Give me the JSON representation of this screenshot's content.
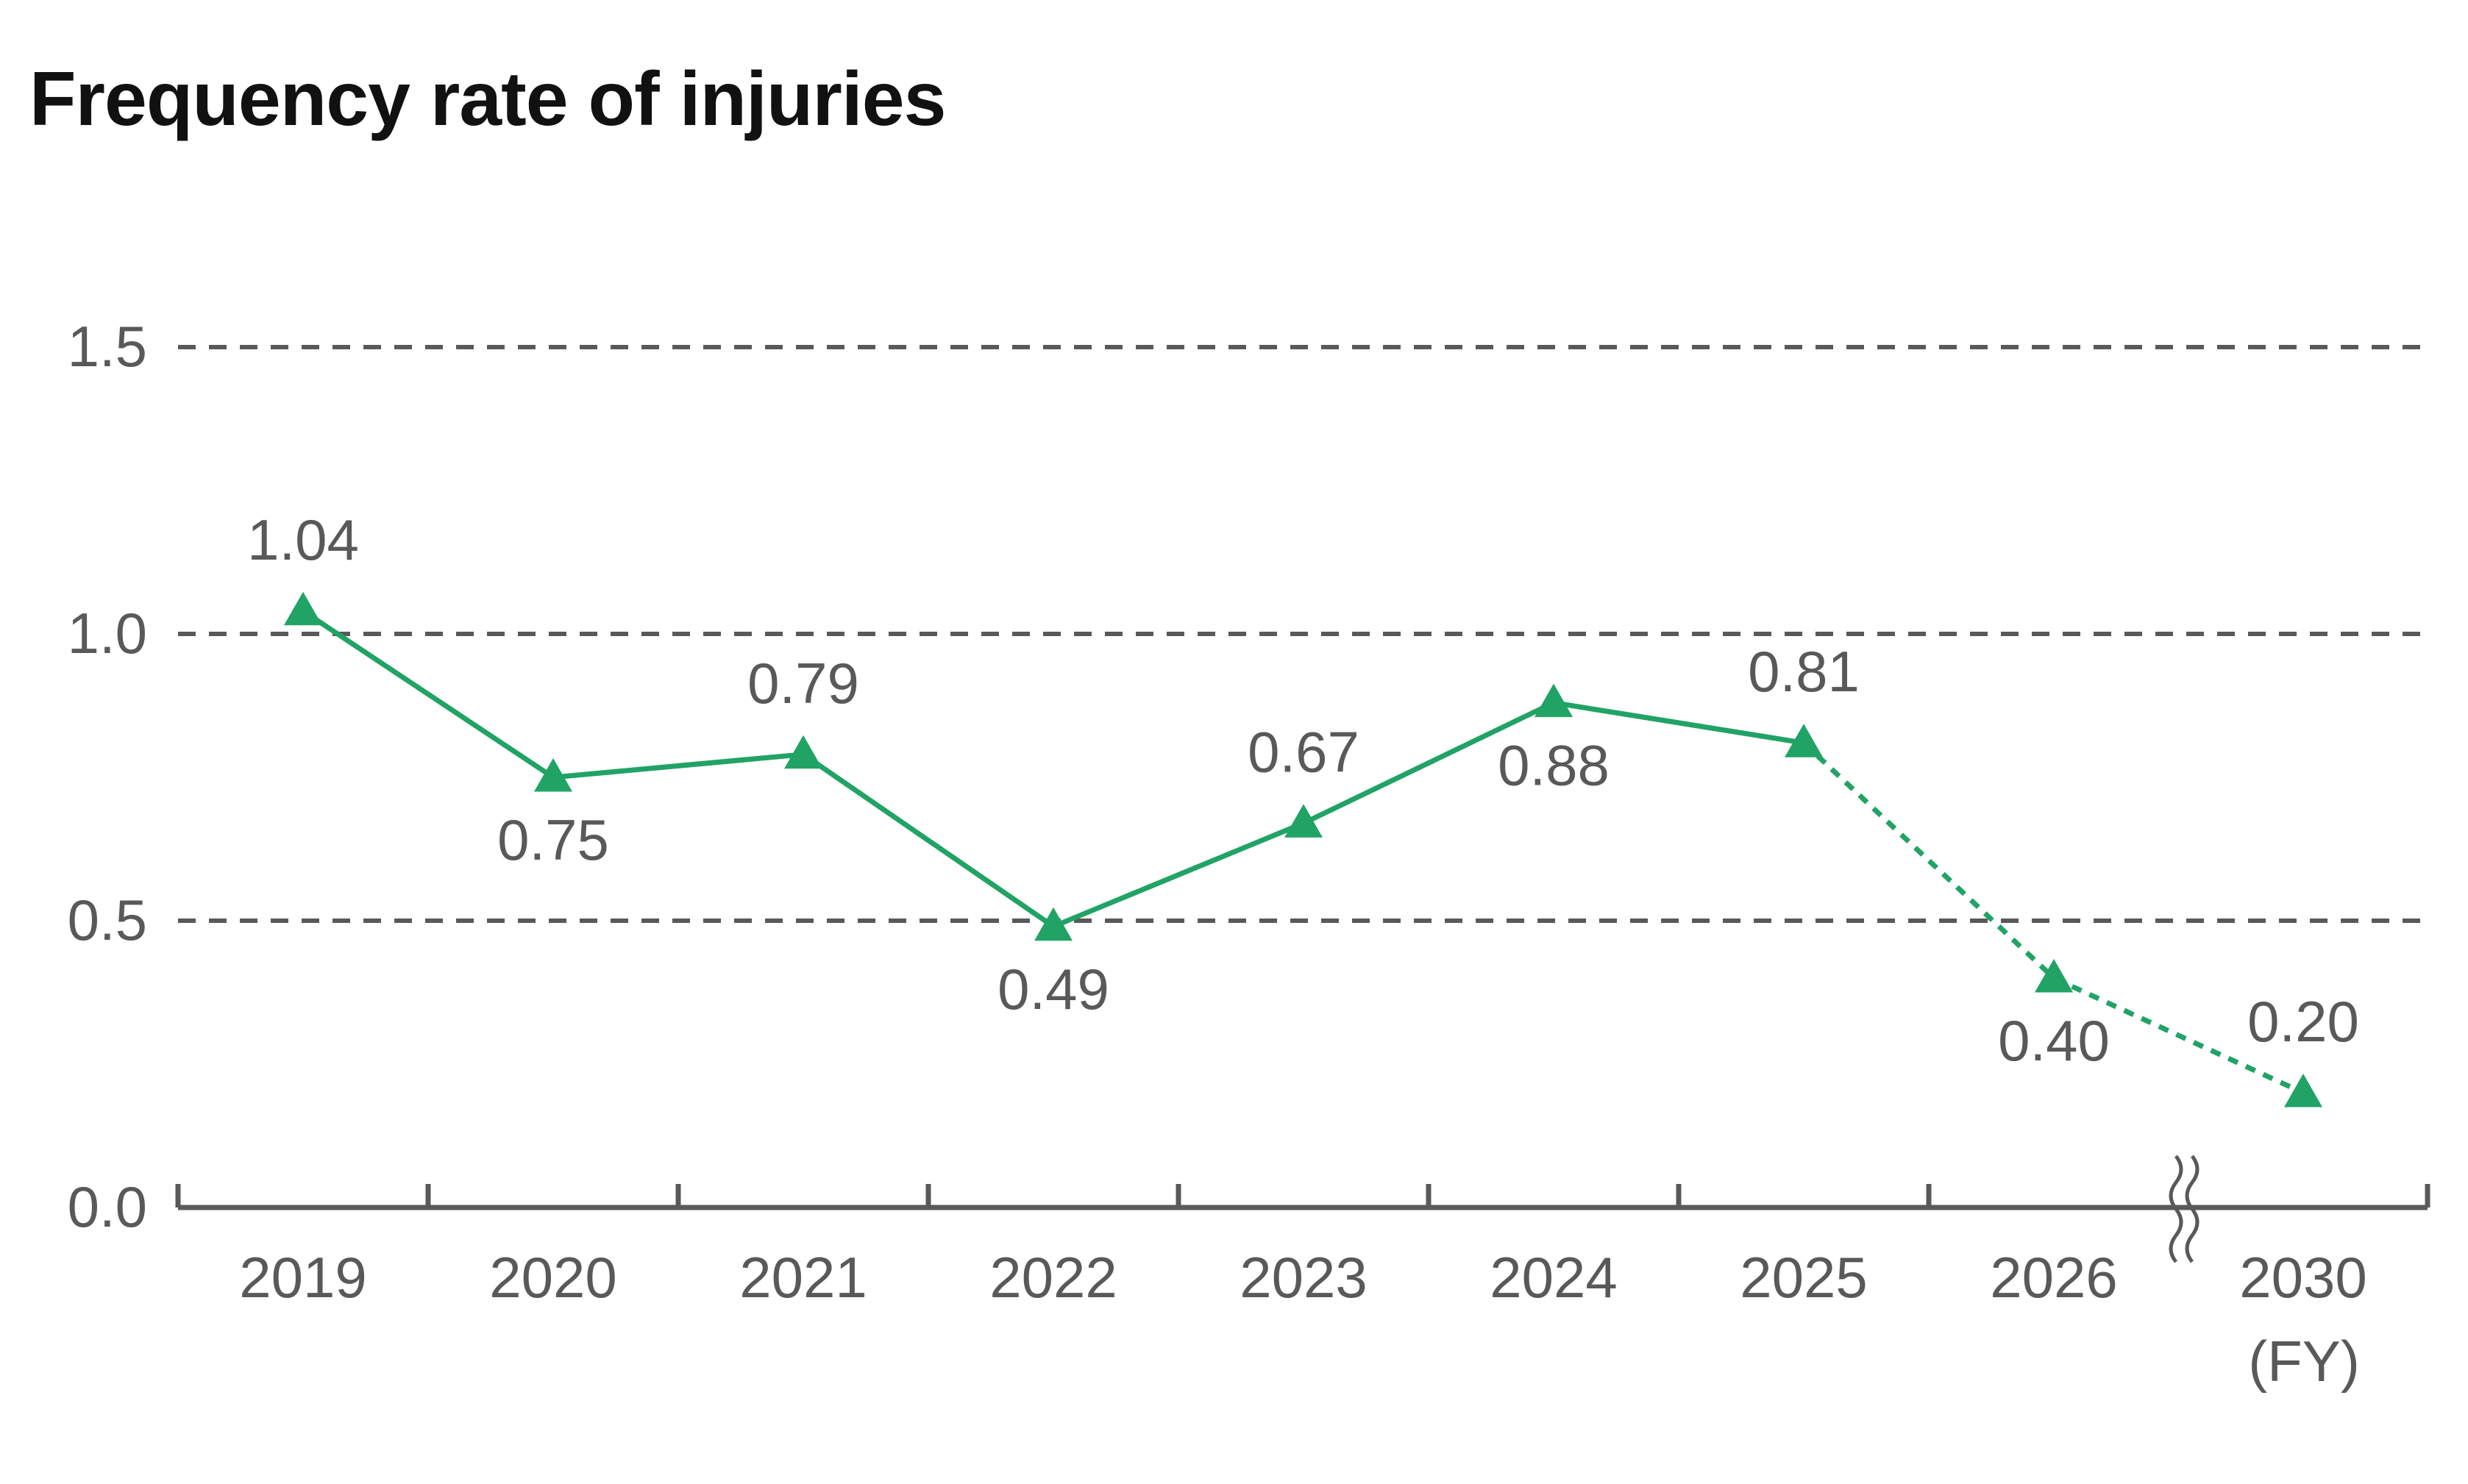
{
  "title": "Frequency rate of injuries",
  "colors": {
    "series": "#21a366",
    "grid": "#595959",
    "axis": "#595959",
    "text": "#595959",
    "title": "#111111"
  },
  "chart_data": {
    "type": "line",
    "title": "Frequency rate of injuries",
    "xlabel": "(FY)",
    "ylabel": "",
    "ylim": [
      0,
      1.5
    ],
    "yticks": [
      "0.0",
      "0.5",
      "1.0",
      "1.5"
    ],
    "grid": "horizontal dashed",
    "axis_break": "between 2026 and 2030",
    "categories": [
      "2019",
      "2020",
      "2021",
      "2022",
      "2023",
      "2024",
      "2025",
      "2026",
      "2030"
    ],
    "series": [
      {
        "values": [
          1.04,
          0.75,
          0.79,
          0.49,
          0.67,
          0.88,
          0.81,
          0.4,
          0.2
        ],
        "labels": [
          "1.04",
          "0.75",
          "0.79",
          "0.49",
          "0.67",
          "0.88",
          "0.81",
          "0.40",
          "0.20"
        ],
        "solid_through": "2025",
        "dashed_from": "2025",
        "marker": "triangle"
      }
    ]
  }
}
